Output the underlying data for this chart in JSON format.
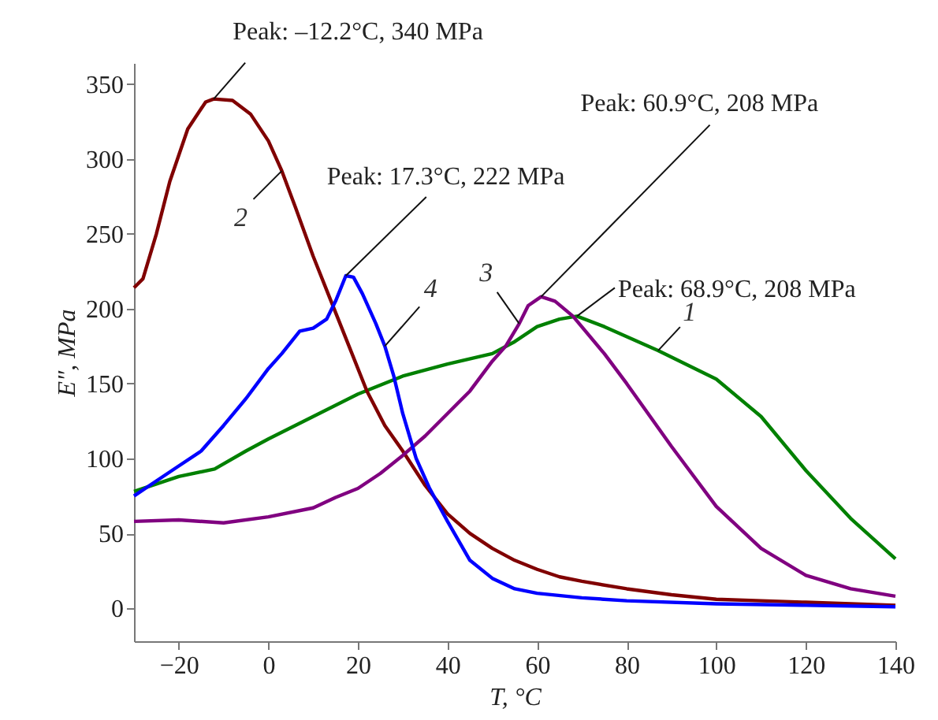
{
  "chart_data": {
    "type": "line",
    "xlabel": "T, °C",
    "ylabel": "E″, MPa",
    "xlim": [
      -30,
      140
    ],
    "xticks": [
      -20,
      0,
      20,
      40,
      60,
      80,
      100,
      120,
      140
    ],
    "ylim": [
      -22,
      364
    ],
    "yticks": [
      0,
      50,
      100,
      150,
      200,
      250,
      300,
      350
    ],
    "series": [
      {
        "name": "1",
        "color": "#008000",
        "x": [
          -30,
          -20,
          -12,
          -5,
          0,
          10,
          20,
          30,
          40,
          50,
          55,
          60,
          65,
          68.9,
          75,
          87,
          100,
          110,
          120,
          130,
          140
        ],
        "values": [
          78,
          88,
          93,
          105,
          113,
          128,
          143,
          155,
          163,
          170,
          178,
          188,
          193,
          195,
          188,
          172,
          153,
          128,
          92,
          60,
          33
        ]
      },
      {
        "name": "2",
        "color": "#800000",
        "x": [
          -30,
          -28,
          -25,
          -22,
          -18,
          -14,
          -12.2,
          -8,
          -4,
          0,
          3,
          6,
          10,
          14,
          18,
          22,
          26,
          30,
          35,
          40,
          45,
          50,
          55,
          60,
          65,
          70,
          80,
          90,
          100,
          110,
          120,
          130,
          140
        ],
        "values": [
          214,
          220,
          250,
          285,
          320,
          338,
          340,
          339,
          330,
          312,
          292,
          268,
          235,
          205,
          175,
          145,
          122,
          105,
          82,
          63,
          50,
          40,
          32,
          26,
          21,
          18,
          13,
          9,
          6,
          5,
          4,
          3,
          2
        ]
      },
      {
        "name": "3",
        "color": "#800080",
        "x": [
          -30,
          -20,
          -10,
          0,
          10,
          15,
          20,
          25,
          30,
          35,
          40,
          45,
          50,
          53,
          56,
          58,
          60.9,
          64,
          68,
          75,
          80,
          90,
          100,
          110,
          120,
          130,
          140
        ],
        "values": [
          58,
          59,
          57,
          61,
          67,
          74,
          80,
          90,
          102,
          115,
          130,
          145,
          165,
          175,
          190,
          202,
          208,
          205,
          195,
          170,
          150,
          108,
          68,
          40,
          22,
          13,
          8
        ]
      },
      {
        "name": "4",
        "color": "#0000ff",
        "x": [
          -30,
          -25,
          -20,
          -15,
          -10,
          -5,
          0,
          3,
          7,
          10,
          13,
          15,
          17.3,
          19,
          21,
          24,
          26,
          28,
          30,
          33,
          36,
          40,
          45,
          50,
          55,
          60,
          70,
          80,
          100,
          120,
          140
        ],
        "values": [
          75,
          85,
          95,
          105,
          122,
          140,
          160,
          170,
          185,
          187,
          193,
          205,
          222,
          221,
          210,
          190,
          175,
          155,
          130,
          100,
          80,
          58,
          32,
          20,
          13,
          10,
          7,
          5,
          3,
          2,
          1
        ]
      }
    ],
    "annotations": [
      {
        "text": "Peak: –12.2°C, 340 MPa",
        "x": -12.2,
        "y": 340
      },
      {
        "text": "Peak: 17.3°C, 222 MPa",
        "x": 17.3,
        "y": 222
      },
      {
        "text": "Peak: 60.9°C, 208 MPa",
        "x": 60.9,
        "y": 208
      },
      {
        "text": "Peak: 68.9°C, 208 MPa",
        "x": 68.9,
        "y": 195
      }
    ]
  }
}
